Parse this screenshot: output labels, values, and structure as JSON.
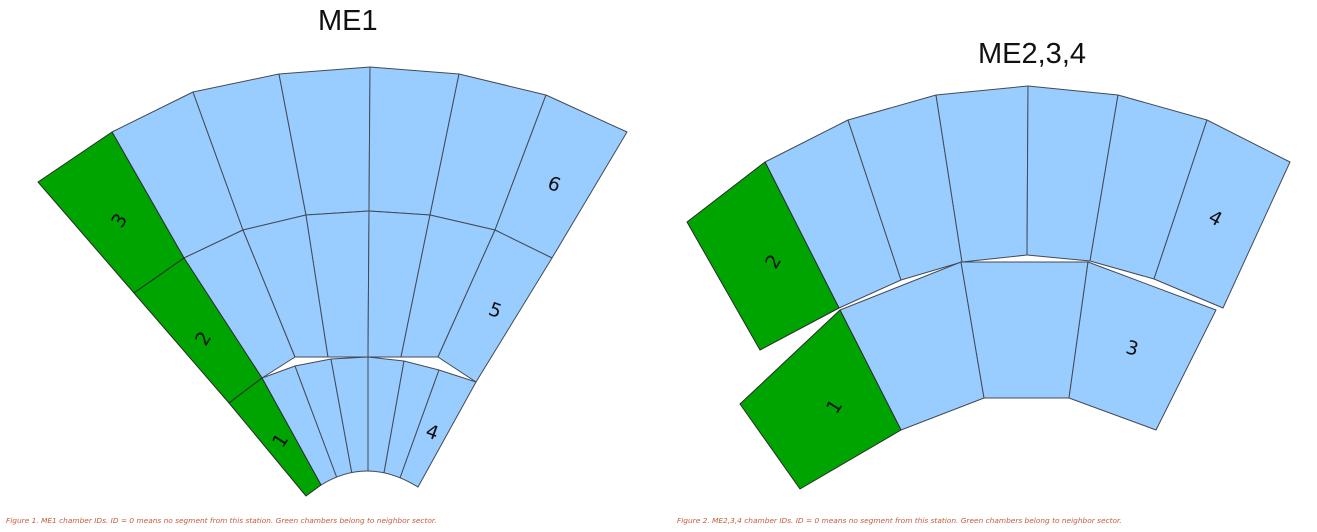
{
  "figure1": {
    "title": "ME1",
    "caption": "Figure 1. ME1 chamber IDs. ID = 0 means no segment from this station. Green chambers belong to neighbor sector.",
    "labels": [
      "1",
      "2",
      "3",
      "4",
      "5",
      "6"
    ]
  },
  "figure2": {
    "title": "ME2,3,4",
    "caption": "Figure 2. ME2,3,4 chamber IDs. ID = 0 means no segment from this station. Green chambers belong to neighbor sector.",
    "labels": [
      "1",
      "2",
      "3",
      "4"
    ]
  },
  "colors": {
    "sector_chamber": "#99ccff",
    "neighbor_chamber": "#00a400",
    "outline": "#444a55",
    "caption_text": "#c85a3c"
  }
}
